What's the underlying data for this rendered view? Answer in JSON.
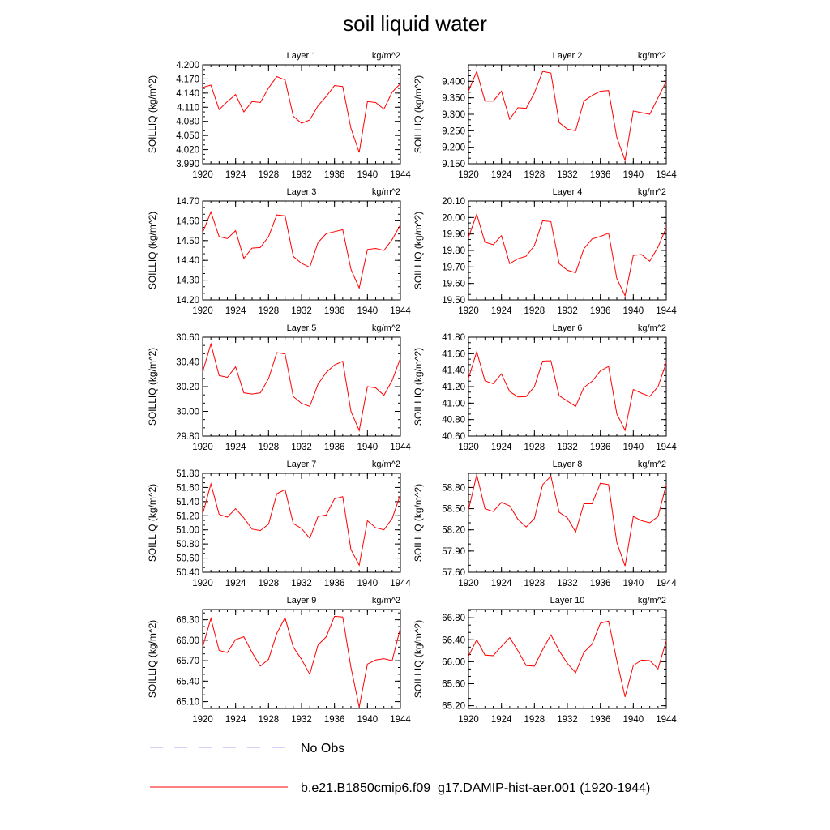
{
  "title": "soil liquid water",
  "legend": [
    {
      "label": "No Obs",
      "color": "#a5a5f5",
      "dash": true
    },
    {
      "label": "b.e21.B1850cmip6.f09_g17.DAMIP-hist-aer.001 (1920-1944)",
      "color": "#ff0000",
      "dash": false
    }
  ],
  "chart_data": [
    {
      "type": "line",
      "title": "Layer 1",
      "unit": "kg/m^2",
      "ylabel": "SOILLIQ  (kg/m^2)",
      "xlim": [
        1920,
        1944
      ],
      "xticks": [
        "1920",
        "1924",
        "1928",
        "1932",
        "1936",
        "1940",
        "1944"
      ],
      "ylim": [
        3.99,
        4.2
      ],
      "yticks": [
        "4.200",
        "4.170",
        "4.140",
        "4.110",
        "4.080",
        "4.050",
        "4.020",
        "3.990"
      ],
      "x": [
        1920,
        1921,
        1922,
        1923,
        1924,
        1925,
        1926,
        1927,
        1928,
        1929,
        1930,
        1931,
        1932,
        1933,
        1934,
        1935,
        1936,
        1937,
        1938,
        1939,
        1940,
        1941,
        1942,
        1943,
        1944
      ],
      "series": [
        {
          "color": "#ff0000",
          "values": [
            4.152,
            4.157,
            4.105,
            4.122,
            4.137,
            4.1,
            4.122,
            4.12,
            4.151,
            4.175,
            4.168,
            4.091,
            4.076,
            4.083,
            4.113,
            4.133,
            4.156,
            4.154,
            4.065,
            4.014,
            4.122,
            4.12,
            4.106,
            4.142,
            4.16
          ]
        }
      ]
    },
    {
      "type": "line",
      "title": "Layer 2",
      "unit": "kg/m^2",
      "ylabel": "SOILLIQ  (kg/m^2)",
      "xlim": [
        1920,
        1944
      ],
      "xticks": [
        "1920",
        "1924",
        "1928",
        "1932",
        "1936",
        "1940",
        "1944"
      ],
      "ylim": [
        9.15,
        9.45
      ],
      "yticks": [
        "9.400",
        "9.350",
        "9.300",
        "9.250",
        "9.200",
        "9.150"
      ],
      "x": [
        1920,
        1921,
        1922,
        1923,
        1924,
        1925,
        1926,
        1927,
        1928,
        1929,
        1930,
        1931,
        1932,
        1933,
        1934,
        1935,
        1936,
        1937,
        1938,
        1939,
        1940,
        1941,
        1942,
        1943,
        1944
      ],
      "series": [
        {
          "color": "#ff0000",
          "values": [
            9.37,
            9.43,
            9.34,
            9.34,
            9.37,
            9.285,
            9.32,
            9.318,
            9.365,
            9.43,
            9.425,
            9.275,
            9.255,
            9.25,
            9.34,
            9.357,
            9.37,
            9.372,
            9.23,
            9.16,
            9.31,
            9.305,
            9.3,
            9.35,
            9.4
          ]
        }
      ]
    },
    {
      "type": "line",
      "title": "Layer 3",
      "unit": "kg/m^2",
      "ylabel": "SOILLIQ  (kg/m^2)",
      "xlim": [
        1920,
        1944
      ],
      "xticks": [
        "1920",
        "1924",
        "1928",
        "1932",
        "1936",
        "1940",
        "1944"
      ],
      "ylim": [
        14.2,
        14.7
      ],
      "yticks": [
        "14.70",
        "14.60",
        "14.50",
        "14.40",
        "14.30",
        "14.20"
      ],
      "x": [
        1920,
        1921,
        1922,
        1923,
        1924,
        1925,
        1926,
        1927,
        1928,
        1929,
        1930,
        1931,
        1932,
        1933,
        1934,
        1935,
        1936,
        1937,
        1938,
        1939,
        1940,
        1941,
        1942,
        1943,
        1944
      ],
      "series": [
        {
          "color": "#ff0000",
          "values": [
            14.54,
            14.645,
            14.52,
            14.51,
            14.55,
            14.41,
            14.462,
            14.465,
            14.52,
            14.63,
            14.625,
            14.42,
            14.385,
            14.365,
            14.49,
            14.535,
            14.545,
            14.555,
            14.355,
            14.26,
            14.455,
            14.46,
            14.45,
            14.505,
            14.58
          ]
        }
      ]
    },
    {
      "type": "line",
      "title": "Layer 4",
      "unit": "kg/m^2",
      "ylabel": "SOILLIQ  (kg/m^2)",
      "xlim": [
        1920,
        1944
      ],
      "xticks": [
        "1920",
        "1924",
        "1928",
        "1932",
        "1936",
        "1940",
        "1944"
      ],
      "ylim": [
        19.5,
        20.1
      ],
      "yticks": [
        "20.10",
        "20.00",
        "19.90",
        "19.80",
        "19.70",
        "19.60",
        "19.50"
      ],
      "x": [
        1920,
        1921,
        1922,
        1923,
        1924,
        1925,
        1926,
        1927,
        1928,
        1929,
        1930,
        1931,
        1932,
        1933,
        1934,
        1935,
        1936,
        1937,
        1938,
        1939,
        1940,
        1941,
        1942,
        1943,
        1944
      ],
      "series": [
        {
          "color": "#ff0000",
          "values": [
            19.88,
            20.02,
            19.85,
            19.835,
            19.89,
            19.72,
            19.75,
            19.765,
            19.83,
            19.98,
            19.975,
            19.72,
            19.68,
            19.665,
            19.81,
            19.87,
            19.885,
            19.905,
            19.63,
            19.525,
            19.77,
            19.775,
            19.735,
            19.82,
            19.94
          ]
        }
      ]
    },
    {
      "type": "line",
      "title": "Layer 5",
      "unit": "kg/m^2",
      "ylabel": "SOILLIQ  (kg/m^2)",
      "xlim": [
        1920,
        1944
      ],
      "xticks": [
        "1920",
        "1924",
        "1928",
        "1932",
        "1936",
        "1940",
        "1944"
      ],
      "ylim": [
        29.8,
        30.6
      ],
      "yticks": [
        "30.60",
        "30.40",
        "30.20",
        "30.00",
        "29.80"
      ],
      "x": [
        1920,
        1921,
        1922,
        1923,
        1924,
        1925,
        1926,
        1927,
        1928,
        1929,
        1930,
        1931,
        1932,
        1933,
        1934,
        1935,
        1936,
        1937,
        1938,
        1939,
        1940,
        1941,
        1942,
        1943,
        1944
      ],
      "series": [
        {
          "color": "#ff0000",
          "values": [
            30.32,
            30.545,
            30.29,
            30.275,
            30.36,
            30.15,
            30.14,
            30.15,
            30.265,
            30.475,
            30.465,
            30.12,
            30.065,
            30.04,
            30.22,
            30.315,
            30.375,
            30.405,
            30.0,
            29.845,
            30.2,
            30.19,
            30.13,
            30.25,
            30.43
          ]
        }
      ]
    },
    {
      "type": "line",
      "title": "Layer 6",
      "unit": "kg/m^2",
      "ylabel": "SOILLIQ  (kg/m^2)",
      "xlim": [
        1920,
        1944
      ],
      "xticks": [
        "1920",
        "1924",
        "1928",
        "1932",
        "1936",
        "1940",
        "1944"
      ],
      "ylim": [
        40.6,
        41.8
      ],
      "yticks": [
        "41.80",
        "41.60",
        "41.40",
        "41.20",
        "41.00",
        "40.80",
        "40.60"
      ],
      "x": [
        1920,
        1921,
        1922,
        1923,
        1924,
        1925,
        1926,
        1927,
        1928,
        1929,
        1930,
        1931,
        1932,
        1933,
        1934,
        1935,
        1936,
        1937,
        1938,
        1939,
        1940,
        1941,
        1942,
        1943,
        1944
      ],
      "series": [
        {
          "color": "#ff0000",
          "values": [
            41.3,
            41.625,
            41.27,
            41.235,
            41.355,
            41.14,
            41.075,
            41.08,
            41.2,
            41.51,
            41.515,
            41.09,
            41.025,
            40.96,
            41.19,
            41.265,
            41.39,
            41.445,
            40.87,
            40.67,
            41.165,
            41.12,
            41.08,
            41.2,
            41.49
          ]
        }
      ]
    },
    {
      "type": "line",
      "title": "Layer 7",
      "unit": "kg/m^2",
      "ylabel": "SOILLIQ  (kg/m^2)",
      "xlim": [
        1920,
        1944
      ],
      "xticks": [
        "1920",
        "1924",
        "1928",
        "1932",
        "1936",
        "1940",
        "1944"
      ],
      "ylim": [
        50.4,
        51.8
      ],
      "yticks": [
        "51.80",
        "51.60",
        "51.40",
        "51.20",
        "51.00",
        "50.80",
        "50.60",
        "50.40"
      ],
      "x": [
        1920,
        1921,
        1922,
        1923,
        1924,
        1925,
        1926,
        1927,
        1928,
        1929,
        1930,
        1931,
        1932,
        1933,
        1934,
        1935,
        1936,
        1937,
        1938,
        1939,
        1940,
        1941,
        1942,
        1943,
        1944
      ],
      "series": [
        {
          "color": "#ff0000",
          "values": [
            51.22,
            51.65,
            51.22,
            51.18,
            51.3,
            51.17,
            51.01,
            50.99,
            51.08,
            51.51,
            51.57,
            51.09,
            51.02,
            50.88,
            51.19,
            51.21,
            51.44,
            51.47,
            50.72,
            50.5,
            51.13,
            51.03,
            51.0,
            51.16,
            51.5
          ]
        }
      ]
    },
    {
      "type": "line",
      "title": "Layer 8",
      "unit": "kg/m^2",
      "ylabel": "SOILLIQ  (kg/m^2)",
      "xlim": [
        1920,
        1944
      ],
      "xticks": [
        "1920",
        "1924",
        "1928",
        "1932",
        "1936",
        "1940",
        "1944"
      ],
      "ylim": [
        57.6,
        59.0
      ],
      "yticks": [
        "58.80",
        "58.50",
        "58.20",
        "57.90",
        "57.60"
      ],
      "x": [
        1920,
        1921,
        1922,
        1923,
        1924,
        1925,
        1926,
        1927,
        1928,
        1929,
        1930,
        1931,
        1932,
        1933,
        1934,
        1935,
        1936,
        1937,
        1938,
        1939,
        1940,
        1941,
        1942,
        1943,
        1944
      ],
      "series": [
        {
          "color": "#ff0000",
          "values": [
            58.48,
            58.98,
            58.5,
            58.46,
            58.59,
            58.54,
            58.35,
            58.24,
            58.36,
            58.84,
            58.96,
            58.45,
            58.37,
            58.17,
            58.57,
            58.57,
            58.86,
            58.84,
            58.02,
            57.69,
            58.39,
            58.33,
            58.3,
            58.39,
            58.84
          ]
        }
      ]
    },
    {
      "type": "line",
      "title": "Layer 9",
      "unit": "kg/m^2",
      "ylabel": "SOILLIQ  (kg/m^2)",
      "xlim": [
        1920,
        1944
      ],
      "xticks": [
        "1920",
        "1924",
        "1928",
        "1932",
        "1936",
        "1940",
        "1944"
      ],
      "ylim": [
        65.0,
        66.45
      ],
      "yticks": [
        "66.30",
        "66.00",
        "65.70",
        "65.40",
        "65.10"
      ],
      "x": [
        1920,
        1921,
        1922,
        1923,
        1924,
        1925,
        1926,
        1927,
        1928,
        1929,
        1930,
        1931,
        1932,
        1933,
        1934,
        1935,
        1936,
        1937,
        1938,
        1939,
        1940,
        1941,
        1942,
        1943,
        1944
      ],
      "series": [
        {
          "color": "#ff0000",
          "values": [
            65.9,
            66.32,
            65.85,
            65.82,
            66.01,
            66.05,
            65.82,
            65.62,
            65.72,
            66.1,
            66.33,
            65.9,
            65.72,
            65.5,
            65.93,
            66.05,
            66.35,
            66.34,
            65.6,
            65.02,
            65.65,
            65.71,
            65.73,
            65.7,
            66.18
          ]
        }
      ]
    },
    {
      "type": "line",
      "title": "Layer 10",
      "unit": "kg/m^2",
      "ylabel": "SOILLIQ  (kg/m^2)",
      "xlim": [
        1920,
        1944
      ],
      "xticks": [
        "1920",
        "1924",
        "1928",
        "1932",
        "1936",
        "1940",
        "1944"
      ],
      "ylim": [
        65.15,
        66.95
      ],
      "yticks": [
        "66.80",
        "66.40",
        "66.00",
        "65.60",
        "65.20"
      ],
      "x": [
        1920,
        1921,
        1922,
        1923,
        1924,
        1925,
        1926,
        1927,
        1928,
        1929,
        1930,
        1931,
        1932,
        1933,
        1934,
        1935,
        1936,
        1937,
        1938,
        1939,
        1940,
        1941,
        1942,
        1943,
        1944
      ],
      "series": [
        {
          "color": "#ff0000",
          "values": [
            66.1,
            66.4,
            66.12,
            66.11,
            66.28,
            66.44,
            66.2,
            65.93,
            65.92,
            66.22,
            66.49,
            66.2,
            65.97,
            65.8,
            66.17,
            66.32,
            66.7,
            66.74,
            66.02,
            65.36,
            65.93,
            66.03,
            66.02,
            65.87,
            66.38
          ]
        }
      ]
    }
  ]
}
